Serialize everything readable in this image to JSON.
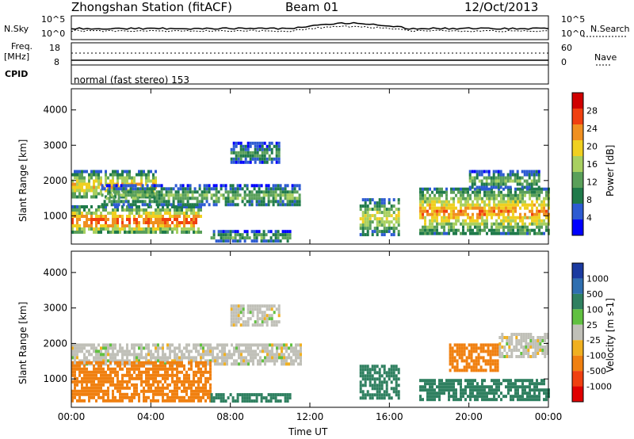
{
  "header": {
    "station": "Zhongshan Station (fitACF)",
    "beam": "Beam 01",
    "date": "12/Oct/2013",
    "cpid_label": "CPID",
    "cpid_text": "normal (fast stereo) 153"
  },
  "top_panels": {
    "nsky_label": "N.Sky",
    "nsearch_label": "N.Search",
    "freq_label_1": "Freq.",
    "freq_label_2": "[MHz]",
    "nave_label": "Nave",
    "left_ticks_noise": [
      "10^5",
      "10^0"
    ],
    "right_ticks_noise": [
      "10^5",
      "10^0"
    ],
    "left_ticks_freq": [
      "18",
      "8"
    ],
    "right_ticks_freq": [
      "60",
      "0"
    ]
  },
  "chart_data": [
    {
      "type": "heatmap",
      "panel": "power",
      "ylabel": "Slant Range [km]",
      "colorbar_label": "Power [dB]",
      "ylim": [
        200,
        4600
      ],
      "yticks": [
        "4000",
        "3000",
        "2000",
        "1000"
      ],
      "colorbar_ticks": [
        "28",
        "24",
        "20",
        "16",
        "12",
        "8",
        "4"
      ],
      "colorbar_colors": [
        "#0000ff",
        "#2d5bd2",
        "#1f7a4a",
        "#5aa05a",
        "#a8d060",
        "#f0d020",
        "#f09020",
        "#f04010",
        "#d00000"
      ],
      "xlim_hours": [
        0,
        24
      ],
      "xticks": [
        "00:00",
        "04:00",
        "08:00",
        "12:00",
        "16:00",
        "20:00",
        "00:00"
      ],
      "regions": [
        {
          "t0": 0.0,
          "t1": 4.2,
          "r0": 1500,
          "r1": 2300,
          "level": 18
        },
        {
          "t0": 0.0,
          "t1": 6.5,
          "r0": 500,
          "r1": 1300,
          "level": 22
        },
        {
          "t0": 1.5,
          "t1": 11.5,
          "r0": 1300,
          "r1": 1900,
          "level": 12
        },
        {
          "t0": 8.0,
          "t1": 10.5,
          "r0": 2500,
          "r1": 3100,
          "level": 10
        },
        {
          "t0": 7.0,
          "t1": 11.0,
          "r0": 300,
          "r1": 600,
          "level": 12
        },
        {
          "t0": 14.5,
          "t1": 16.5,
          "r0": 500,
          "r1": 1500,
          "level": 16
        },
        {
          "t0": 17.5,
          "t1": 24.0,
          "r0": 500,
          "r1": 1800,
          "level": 20
        },
        {
          "t0": 20.0,
          "t1": 23.5,
          "r0": 1800,
          "r1": 2300,
          "level": 12
        }
      ]
    },
    {
      "type": "heatmap",
      "panel": "velocity",
      "ylabel": "Slant Range [km]",
      "xlabel": "Time UT",
      "colorbar_label": "Velocity [m s-1]",
      "ylim": [
        200,
        4600
      ],
      "yticks": [
        "4000",
        "3000",
        "2000",
        "1000"
      ],
      "colorbar_ticks": [
        "1000",
        "500",
        "100",
        "25",
        "-25",
        "-100",
        "-500",
        "-1000"
      ],
      "colorbar_colors": [
        "#1a3aa0",
        "#2f6fb0",
        "#2f8060",
        "#60c040",
        "#c0c0b8",
        "#f0b020",
        "#f08010",
        "#f04010",
        "#e00000"
      ],
      "xlim_hours": [
        0,
        24
      ],
      "xticks": [
        "00:00",
        "04:00",
        "08:00",
        "12:00",
        "16:00",
        "20:00",
        "00:00"
      ],
      "regions": [
        {
          "t0": 0.0,
          "t1": 11.5,
          "r0": 1400,
          "r1": 2000,
          "level": 0
        },
        {
          "t0": 0.0,
          "t1": 7.0,
          "r0": 400,
          "r1": 1500,
          "level": -200
        },
        {
          "t0": 8.0,
          "t1": 10.5,
          "r0": 2500,
          "r1": 3100,
          "level": 0
        },
        {
          "t0": 7.0,
          "t1": 11.0,
          "r0": 400,
          "r1": 600,
          "level": 150
        },
        {
          "t0": 14.5,
          "t1": 16.5,
          "r0": 500,
          "r1": 1400,
          "level": 150
        },
        {
          "t0": 17.5,
          "t1": 24.0,
          "r0": 400,
          "r1": 1000,
          "level": 150
        },
        {
          "t0": 19.0,
          "t1": 21.5,
          "r0": 1200,
          "r1": 2000,
          "level": -200
        },
        {
          "t0": 21.5,
          "t1": 24.0,
          "r0": 1600,
          "r1": 2300,
          "level": 0
        }
      ]
    }
  ]
}
